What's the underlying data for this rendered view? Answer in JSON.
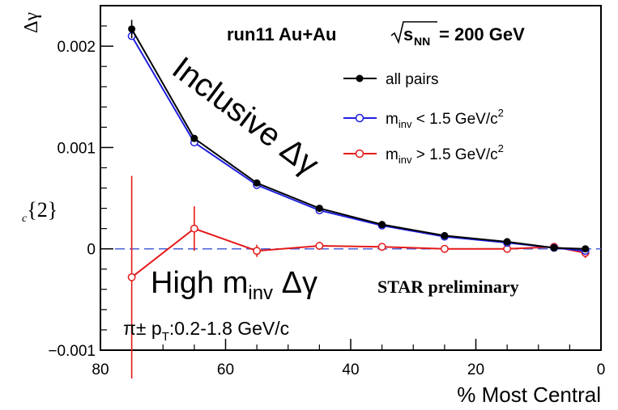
{
  "chart_data": {
    "type": "line",
    "title": "run11 Au+Au",
    "title_energy": "= 200 GeV",
    "title_s": "s",
    "title_nn": "NN",
    "ylabel": "Δγ",
    "ylabel_left_cut": "{2}",
    "ylabel_left_sub": "c",
    "xlabel": "% Most Central",
    "xlim": [
      80,
      0
    ],
    "ylim": [
      -0.001,
      0.0024
    ],
    "x_ticks": [
      80,
      60,
      40,
      20,
      0
    ],
    "x_tick_labels": [
      "80",
      "60",
      "40",
      "20",
      "0"
    ],
    "y_ticks": [
      -0.001,
      0,
      0.001,
      0.002
    ],
    "y_tick_labels": [
      "−0.001",
      "0",
      "0.001",
      "0.002"
    ],
    "reference_line_y": 0,
    "x": [
      75,
      65,
      55,
      45,
      35,
      25,
      15,
      7.5,
      2.5
    ],
    "series": [
      {
        "name": "all pairs",
        "color": "#000000",
        "marker": "filled-circle",
        "values": [
          0.00217,
          0.00109,
          0.00065,
          0.0004,
          0.00024,
          0.00013,
          7e-05,
          1e-05,
          0.0
        ]
      },
      {
        "name": "m < 1.5 GeV/c",
        "color": "#1f1fdf",
        "marker": "open-circle",
        "values": [
          0.0021,
          0.00105,
          0.00063,
          0.00038,
          0.00023,
          0.00012,
          6e-05,
          1e-05,
          -2e-05
        ]
      },
      {
        "name": "m > 1.5 GeV/c",
        "color": "#e41a1a",
        "marker": "open-circle",
        "values": [
          -0.00028,
          0.0002,
          -2e-05,
          3e-05,
          2e-05,
          0.0,
          0.0,
          2e-05,
          -4e-05
        ],
        "errors": [
          0.001,
          0.00022,
          6e-05,
          4e-05,
          3e-05,
          2e-05,
          2e-05,
          3e-05,
          5e-05
        ]
      }
    ],
    "black_errors": [
      9e-05,
      3e-05,
      2e-05,
      1e-05,
      1e-05,
      1e-05,
      1e-05,
      1e-05,
      1e-05
    ],
    "legend": {
      "placement": "top-right",
      "entries": [
        {
          "pre": "all pairs",
          "sub": "",
          "post": "",
          "sup": ""
        },
        {
          "pre": "m",
          "sub": "inv",
          "post": " < 1.5 GeV/c",
          "sup": "2"
        },
        {
          "pre": "m",
          "sub": "inv",
          "post": " > 1.5 GeV/c",
          "sup": "2"
        }
      ]
    },
    "annotations": {
      "inclusive": "Inclusive Δγ",
      "high_pre": "High m",
      "high_sub": "inv",
      "high_post": " Δγ",
      "star": "STAR preliminary",
      "pt_pre": "π± p",
      "pt_sub": "T",
      "pt_post": ":0.2-1.8 GeV/c"
    },
    "colors": {
      "reference_line": "#4a5fd6",
      "blue_text": "#1f1fdf",
      "red_text": "#e41a1a"
    }
  }
}
